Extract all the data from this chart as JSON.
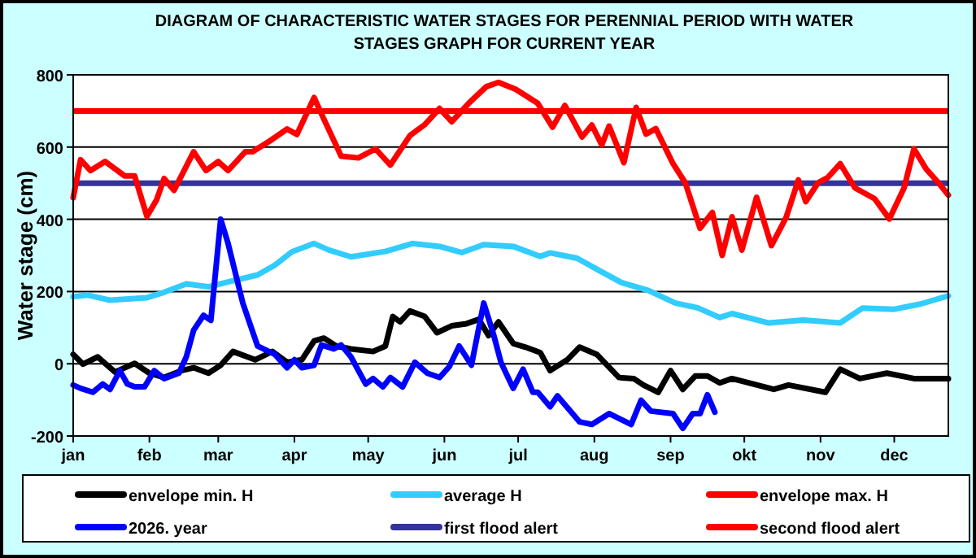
{
  "chart_data": {
    "type": "line",
    "title": "DIAGRAM OF CHARACTERISTIC WATER STAGES FOR PERENNIAL PERIOD WITH WATER STAGES GRAPH FOR CURRENT YEAR",
    "ylabel": "Water stage (cm)",
    "xlim": [
      "--01-01",
      "--12-23"
    ],
    "xticks": [
      {
        "value": "--01-01",
        "label": "jan"
      },
      {
        "value": "--02-01",
        "label": "feb"
      },
      {
        "value": "--03-01",
        "label": "mar"
      },
      {
        "value": "--04-01",
        "label": "apr"
      },
      {
        "value": "--05-01",
        "label": "may"
      },
      {
        "value": "--06-01",
        "label": "jun"
      },
      {
        "value": "--07-01",
        "label": "jul"
      },
      {
        "value": "--08-01",
        "label": "aug"
      },
      {
        "value": "--09-01",
        "label": "sep"
      },
      {
        "value": "--10-01",
        "label": "okt"
      },
      {
        "value": "--11-01",
        "label": "nov"
      },
      {
        "value": "--12-01",
        "label": "dec"
      }
    ],
    "ylim": [
      -200,
      800
    ],
    "yticks": [
      -200,
      0,
      200,
      400,
      600,
      800
    ],
    "grid": "y",
    "legend": "bottom",
    "line_style": "solid",
    "series": [
      {
        "name": "envelope min. H",
        "color": "#000000",
        "x": [
          "--01-01",
          "--01-05",
          "--01-11",
          "--01-18",
          "--01-26",
          "--02-01",
          "--02-07",
          "--02-14",
          "--02-19",
          "--02-25",
          "--03-02",
          "--03-07",
          "--03-16",
          "--03-23",
          "--03-29",
          "--04-04",
          "--04-09",
          "--04-13",
          "--04-18",
          "--04-24",
          "--05-03",
          "--05-08",
          "--05-11",
          "--05-14",
          "--05-18",
          "--05-24",
          "--05-29",
          "--06-04",
          "--06-10",
          "--06-15",
          "--06-19",
          "--06-23",
          "--06-29",
          "--07-04",
          "--07-10",
          "--07-14",
          "--07-21",
          "--07-26",
          "--08-02",
          "--08-11",
          "--08-17",
          "--08-21",
          "--08-27",
          "--09-01",
          "--09-06",
          "--09-11",
          "--09-16",
          "--09-21",
          "--09-26",
          "--10-13",
          "--10-19",
          "--11-03",
          "--11-09",
          "--11-17",
          "--11-28",
          "--12-09",
          "--12-23"
        ],
        "values": [
          26,
          -1,
          19,
          -23,
          1,
          -26,
          -38,
          -19,
          -11,
          -26,
          -4,
          34,
          11,
          34,
          4,
          11,
          63,
          71,
          49,
          41,
          34,
          49,
          131,
          116,
          146,
          131,
          86,
          105,
          111,
          123,
          78,
          116,
          56,
          46,
          31,
          -19,
          11,
          46,
          26,
          -38,
          -41,
          -59,
          -79,
          -19,
          -71,
          -34,
          -34,
          -53,
          -41,
          -71,
          -59,
          -79,
          -15,
          -41,
          -26,
          -41,
          -41
        ]
      },
      {
        "name": "average H",
        "color": "#33ccff",
        "x": [
          "--01-01",
          "--01-07",
          "--01-16",
          "--01-31",
          "--02-07",
          "--02-16",
          "--02-25",
          "--03-06",
          "--03-17",
          "--03-24",
          "--03-31",
          "--04-09",
          "--04-15",
          "--04-24",
          "--05-08",
          "--05-19",
          "--05-30",
          "--06-08",
          "--06-17",
          "--06-29",
          "--07-10",
          "--07-14",
          "--07-25",
          "--08-03",
          "--08-12",
          "--08-23",
          "--09-03",
          "--09-12",
          "--09-21",
          "--09-26",
          "--10-11",
          "--10-25",
          "--11-09",
          "--11-18",
          "--12-01",
          "--12-12",
          "--12-23"
        ],
        "values": [
          186,
          190,
          176,
          183,
          198,
          221,
          213,
          228,
          246,
          273,
          310,
          333,
          315,
          296,
          311,
          333,
          325,
          308,
          330,
          325,
          297,
          307,
          292,
          258,
          225,
          203,
          168,
          155,
          128,
          139,
          113,
          121,
          113,
          154,
          151,
          166,
          188
        ]
      },
      {
        "name": "envelope max. H",
        "color": "#ff0000",
        "x": [
          "--01-01",
          "--01-04",
          "--01-08",
          "--01-14",
          "--01-22",
          "--01-26",
          "--01-31",
          "--02-04",
          "--02-07",
          "--02-11",
          "--02-19",
          "--02-24",
          "--03-01",
          "--03-05",
          "--03-12",
          "--03-15",
          "--03-22",
          "--03-29",
          "--04-02",
          "--04-09",
          "--04-13",
          "--04-20",
          "--04-27",
          "--05-04",
          "--05-10",
          "--05-18",
          "--05-24",
          "--05-30",
          "--06-04",
          "--06-11",
          "--06-18",
          "--06-23",
          "--06-30",
          "--07-09",
          "--07-15",
          "--07-20",
          "--07-27",
          "--07-31",
          "--08-04",
          "--08-07",
          "--08-13",
          "--08-18",
          "--08-22",
          "--08-26",
          "--09-02",
          "--09-07",
          "--09-13",
          "--09-18",
          "--09-22",
          "--09-26",
          "--09-30",
          "--10-06",
          "--10-12",
          "--10-18",
          "--10-23",
          "--10-26",
          "--10-31",
          "--11-04",
          "--11-09",
          "--11-15",
          "--11-23",
          "--11-29",
          "--12-05",
          "--12-09",
          "--12-14",
          "--12-19",
          "--12-23"
        ],
        "values": [
          460,
          565,
          535,
          560,
          520,
          520,
          408,
          455,
          513,
          480,
          587,
          535,
          560,
          535,
          587,
          587,
          617,
          650,
          635,
          737,
          677,
          575,
          570,
          595,
          550,
          632,
          662,
          707,
          670,
          722,
          767,
          779,
          760,
          721,
          655,
          715,
          628,
          661,
          606,
          658,
          557,
          710,
          636,
          651,
          554,
          501,
          375,
          419,
          300,
          407,
          315,
          461,
          327,
          405,
          509,
          449,
          501,
          516,
          554,
          487,
          457,
          401,
          487,
          595,
          539,
          501,
          467
        ]
      },
      {
        "name": "2026. year",
        "color": "#0000ff",
        "x": [
          "--01-01",
          "--01-04",
          "--01-09",
          "--01-13",
          "--01-16",
          "--01-20",
          "--01-23",
          "--01-26",
          "--01-30",
          "--02-03",
          "--02-07",
          "--02-13",
          "--02-16",
          "--02-19",
          "--02-23",
          "--02-26",
          "--03-02",
          "--03-05",
          "--03-11",
          "--03-17",
          "--03-24",
          "--03-29",
          "--04-01",
          "--04-04",
          "--04-09",
          "--04-12",
          "--04-17",
          "--04-20",
          "--04-24",
          "--04-30",
          "--05-03",
          "--05-07",
          "--05-10",
          "--05-15",
          "--05-20",
          "--05-25",
          "--05-30",
          "--06-03",
          "--06-07",
          "--06-12",
          "--06-17",
          "--06-21",
          "--06-24",
          "--06-29",
          "--07-03",
          "--07-07",
          "--07-09",
          "--07-14",
          "--07-17",
          "--07-26",
          "--07-31",
          "--08-07",
          "--08-16",
          "--08-20",
          "--08-24",
          "--09-02",
          "--09-06",
          "--09-10",
          "--09-13",
          "--09-16",
          "--09-19"
        ],
        "values": [
          -59,
          -68,
          -79,
          -56,
          -71,
          -19,
          -56,
          -64,
          -64,
          -19,
          -41,
          -26,
          19,
          93,
          134,
          120,
          400,
          333,
          168,
          49,
          26,
          -11,
          11,
          -11,
          -4,
          52,
          41,
          52,
          19,
          -56,
          -41,
          -64,
          -38,
          -64,
          4,
          -26,
          -38,
          -8,
          49,
          -4,
          168,
          81,
          4,
          -68,
          -15,
          -79,
          -79,
          -119,
          -89,
          -161,
          -168,
          -138,
          -168,
          -101,
          -131,
          -138,
          -179,
          -138,
          -138,
          -86,
          -134
        ]
      }
    ],
    "ref_lines": [
      {
        "axis": "y",
        "value": 500,
        "label": "first flood alert",
        "color": "#333399"
      },
      {
        "axis": "y",
        "value": 700,
        "label": "second flood alert",
        "color": "#ff0000"
      }
    ]
  }
}
